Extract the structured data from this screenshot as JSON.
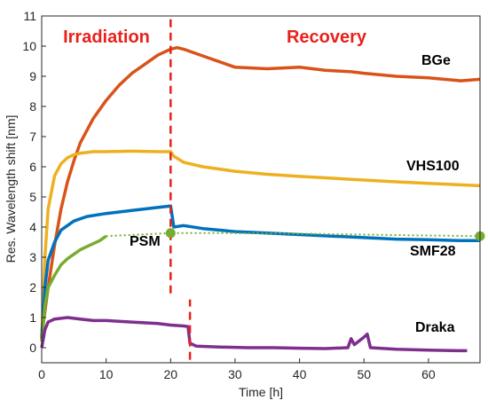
{
  "chart_data": {
    "type": "line",
    "xlabel": "Time [h]",
    "ylabel": "Res. Wavelength shift [nm]",
    "xlim": [
      0,
      68
    ],
    "ylim": [
      -0.5,
      11
    ],
    "xticks": [
      0,
      10,
      20,
      30,
      40,
      50,
      60
    ],
    "yticks": [
      0,
      1,
      2,
      3,
      4,
      5,
      6,
      7,
      8,
      9,
      10,
      11
    ],
    "grid": false,
    "annotations": [
      {
        "text": "Irradiation",
        "color": "#e8211b"
      },
      {
        "text": "Recovery",
        "color": "#e8211b"
      }
    ],
    "vlines": [
      {
        "x": 20,
        "y_from": 1.8,
        "y_to": 11,
        "color": "#e8211b",
        "style": "dashed"
      },
      {
        "x": 23,
        "y_from": -0.4,
        "y_to": 1.6,
        "color": "#e8211b",
        "style": "dashed"
      }
    ],
    "series": [
      {
        "name": "BGe",
        "color": "#d95319",
        "x": [
          0,
          1,
          2,
          3,
          4,
          5,
          6,
          8,
          10,
          12,
          14,
          16,
          18,
          20,
          21,
          22,
          24,
          26,
          28,
          30,
          35,
          40,
          44,
          48,
          50,
          55,
          60,
          65,
          68
        ],
        "y": [
          0.4,
          2.0,
          3.4,
          4.6,
          5.5,
          6.2,
          6.8,
          7.6,
          8.2,
          8.7,
          9.1,
          9.4,
          9.7,
          9.9,
          9.95,
          9.9,
          9.75,
          9.6,
          9.45,
          9.3,
          9.25,
          9.3,
          9.2,
          9.15,
          9.1,
          9.0,
          8.95,
          8.85,
          8.9
        ]
      },
      {
        "name": "VHS100",
        "color": "#edb120",
        "x": [
          0,
          0.5,
          1,
          2,
          3,
          4,
          5,
          6,
          8,
          10,
          14,
          18,
          20,
          20.5,
          22,
          25,
          30,
          35,
          40,
          45,
          50,
          55,
          60,
          65,
          68
        ],
        "y": [
          0.3,
          3.0,
          4.6,
          5.7,
          6.1,
          6.3,
          6.4,
          6.45,
          6.5,
          6.5,
          6.52,
          6.5,
          6.5,
          6.35,
          6.15,
          6.0,
          5.85,
          5.75,
          5.68,
          5.62,
          5.56,
          5.5,
          5.45,
          5.4,
          5.37
        ]
      },
      {
        "name": "SMF28",
        "color": "#0072bd",
        "x": [
          0,
          0.5,
          1,
          2,
          3,
          5,
          7,
          10,
          14,
          18,
          20,
          20.5,
          22,
          25,
          30,
          35,
          40,
          45,
          50,
          55,
          60,
          65,
          68
        ],
        "y": [
          0.3,
          2.0,
          2.9,
          3.5,
          3.9,
          4.2,
          4.35,
          4.45,
          4.55,
          4.65,
          4.7,
          4.0,
          4.05,
          3.95,
          3.85,
          3.8,
          3.75,
          3.7,
          3.65,
          3.6,
          3.58,
          3.55,
          3.55
        ]
      },
      {
        "name": "PSM",
        "color": "#77ac30",
        "x": [
          0,
          0.5,
          1,
          2,
          3,
          4,
          5,
          6,
          7,
          8,
          9,
          10,
          20,
          30,
          40,
          50,
          60,
          68
        ],
        "y": [
          0.2,
          1.4,
          2.0,
          2.4,
          2.75,
          2.95,
          3.1,
          3.25,
          3.35,
          3.45,
          3.55,
          3.7,
          3.8,
          3.8,
          3.78,
          3.75,
          3.72,
          3.7
        ]
      },
      {
        "name": "Draka",
        "color": "#7e2f8e",
        "x": [
          0,
          0.5,
          1,
          2,
          4,
          6,
          8,
          10,
          14,
          18,
          20,
          22,
          22.7,
          23,
          24,
          28,
          32,
          36,
          40,
          44,
          47.5,
          48,
          48.5,
          50,
          50.5,
          51,
          55,
          60,
          65,
          66
        ],
        "y": [
          0.0,
          0.6,
          0.85,
          0.95,
          1.0,
          0.95,
          0.9,
          0.9,
          0.85,
          0.8,
          0.75,
          0.72,
          0.7,
          0.15,
          0.05,
          0.02,
          0.0,
          0.0,
          -0.02,
          -0.03,
          0.0,
          0.3,
          0.1,
          0.35,
          0.45,
          0.0,
          -0.05,
          -0.08,
          -0.1,
          -0.1
        ]
      }
    ],
    "markers": [
      {
        "series": "PSM",
        "x": 20,
        "y": 3.8,
        "color": "#77ac30"
      },
      {
        "series": "PSM",
        "x": 68,
        "y": 3.7,
        "color": "#77ac30"
      }
    ]
  }
}
